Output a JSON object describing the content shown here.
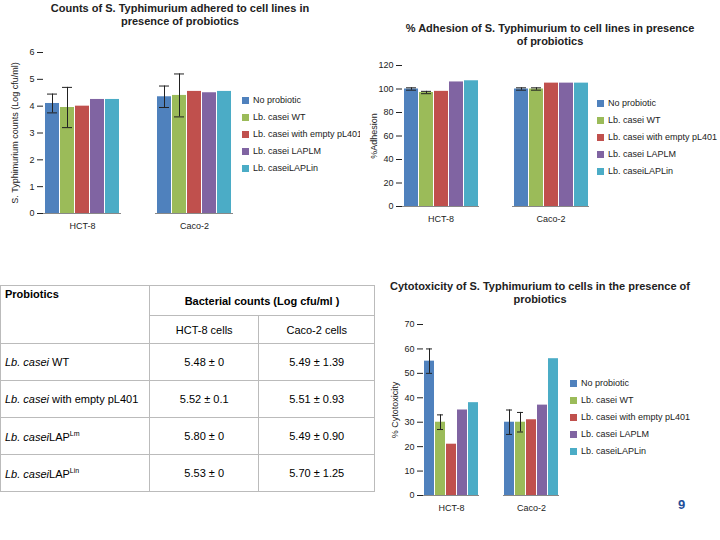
{
  "chart_data": [
    {
      "type": "bar",
      "title": "Counts  of S. Typhimurium adhered to cell lines in presence of probiotics",
      "y_label": "S. Typhimurium counts (Log cfu/ml)",
      "categories": [
        "HCT-8",
        "Caco-2"
      ],
      "ylim": [
        0,
        6
      ],
      "yticks": [
        0,
        1,
        2,
        3,
        4,
        5,
        6
      ],
      "grid": false,
      "legend": "right",
      "series": [
        {
          "name": "No probiotic",
          "color": "#4f81bd",
          "values": [
            4.1,
            4.35
          ],
          "errors": [
            0.35,
            0.4
          ]
        },
        {
          "name": "Lb. casei WT",
          "color": "#9bbb59",
          "values": [
            3.95,
            4.4
          ],
          "errors": [
            0.75,
            0.8
          ]
        },
        {
          "name": "Lb. casei with empty pL401",
          "color": "#c0504d",
          "values": [
            4.0,
            4.55
          ],
          "errors": [
            null,
            null
          ]
        },
        {
          "name": "Lb. casei LAPLM",
          "color": "#8064a2",
          "values": [
            4.25,
            4.5
          ],
          "errors": [
            null,
            null
          ]
        },
        {
          "name": "Lb. caseiLAPLin",
          "color": "#4bacc6",
          "values": [
            4.25,
            4.55
          ],
          "errors": [
            null,
            null
          ]
        }
      ]
    },
    {
      "type": "bar",
      "title": "% Adhesion of S. Typhimurium to cell lines in presence of probiotics",
      "y_label": "%Adhesion",
      "categories": [
        "HCT-8",
        "Caco-2"
      ],
      "ylim": [
        0,
        120
      ],
      "yticks": [
        0,
        20,
        40,
        60,
        80,
        100,
        120
      ],
      "grid": false,
      "legend": "right",
      "series": [
        {
          "name": "No probiotic",
          "color": "#4f81bd",
          "values": [
            100,
            100
          ],
          "errors": [
            1,
            1
          ]
        },
        {
          "name": "Lb. casei WT",
          "color": "#9bbb59",
          "values": [
            97,
            100
          ],
          "errors": [
            1,
            1
          ]
        },
        {
          "name": "Lb. casei with empty pL401",
          "color": "#c0504d",
          "values": [
            98,
            105
          ],
          "errors": [
            null,
            null
          ]
        },
        {
          "name": "Lb. casei LAPLM",
          "color": "#8064a2",
          "values": [
            106,
            105
          ],
          "errors": [
            null,
            null
          ]
        },
        {
          "name": "Lb. caseiLAPLin",
          "color": "#4bacc6",
          "values": [
            107,
            105
          ],
          "errors": [
            null,
            null
          ]
        }
      ]
    },
    {
      "type": "bar",
      "title": "Cytotoxicity of S. Typhimurium to cells in the presence of probiotics",
      "y_label": "% Cytotoxicity",
      "categories": [
        "HCT-8",
        "Caco-2"
      ],
      "ylim": [
        0,
        70
      ],
      "yticks": [
        0,
        10,
        20,
        30,
        40,
        50,
        60,
        70
      ],
      "grid": false,
      "legend": "right",
      "series": [
        {
          "name": "No probiotic",
          "color": "#4f81bd",
          "values": [
            55,
            30
          ],
          "errors": [
            5,
            5
          ]
        },
        {
          "name": "Lb. casei WT",
          "color": "#9bbb59",
          "values": [
            30,
            30
          ],
          "errors": [
            3,
            4
          ]
        },
        {
          "name": "Lb. casei with empty pL401",
          "color": "#c0504d",
          "values": [
            21,
            31
          ],
          "errors": [
            null,
            null
          ]
        },
        {
          "name": "Lb. casei LAPLM",
          "color": "#8064a2",
          "values": [
            35,
            37
          ],
          "errors": [
            null,
            null
          ]
        },
        {
          "name": "Lb. caseiLAPLin",
          "color": "#4bacc6",
          "values": [
            38,
            56
          ],
          "errors": [
            null,
            null
          ]
        }
      ]
    }
  ],
  "table": {
    "header": [
      "Probiotics",
      "Bacterial counts (Log cfu/ml )"
    ],
    "subheader": [
      "HCT-8 cells",
      "Caco-2 cells"
    ],
    "rows": [
      {
        "probiotic": {
          "italic": "Lb. casei",
          "text": " WT"
        },
        "cells": [
          "5.48 ± 0",
          "5.49 ± 1.39"
        ]
      },
      {
        "probiotic": {
          "italic": "Lb. casei",
          "text": " with empty pL401"
        },
        "cells": [
          "5.52 ± 0.1",
          "5.51 ± 0.93"
        ]
      },
      {
        "probiotic": {
          "italic": "Lb. casei",
          "text": "LAP",
          "sup": "Lm"
        },
        "cells": [
          "5.80 ± 0",
          "5.49 ± 0.90"
        ]
      },
      {
        "probiotic": {
          "italic": "Lb. casei",
          "text": "LAP",
          "sup": "Lin"
        },
        "cells": [
          "5.53 ± 0",
          "5.70 ± 1.25"
        ]
      }
    ]
  },
  "footer": "9"
}
